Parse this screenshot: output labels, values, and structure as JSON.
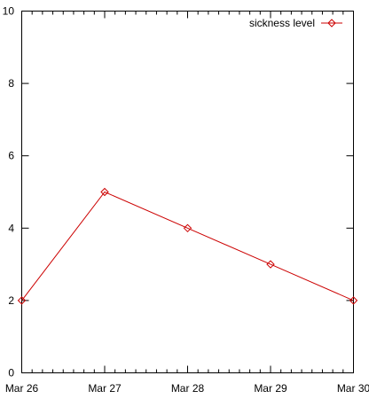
{
  "chart_data": {
    "type": "line",
    "title": "",
    "xlabel": "",
    "ylabel": "",
    "categories": [
      "Mar 26",
      "Mar 27",
      "Mar 28",
      "Mar 29",
      "Mar 30"
    ],
    "ylim": [
      0,
      10
    ],
    "yticks": [
      "0",
      "2",
      "4",
      "6",
      "8",
      "10"
    ],
    "grid": false,
    "legend_position": "top-right",
    "series": [
      {
        "name": "sickness level",
        "color": "#cc0000",
        "marker": "diamond",
        "values": [
          2,
          5,
          4,
          3,
          2
        ]
      }
    ]
  }
}
